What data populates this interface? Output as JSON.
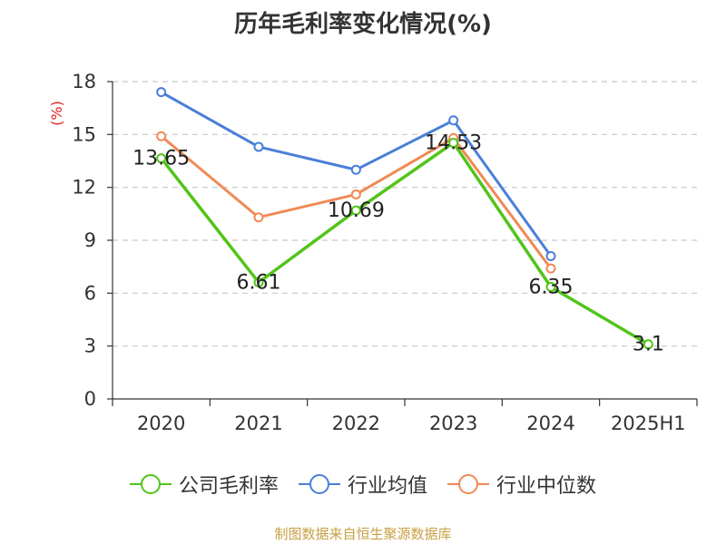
{
  "chart_data": {
    "type": "line",
    "title": "历年毛利率变化情况(%)",
    "ylabel": "(%)",
    "xlabel": "",
    "categories": [
      "2020",
      "2021",
      "2022",
      "2023",
      "2024",
      "2025H1"
    ],
    "ylim": [
      0,
      18
    ],
    "yticks": [
      0,
      3,
      6,
      9,
      12,
      15,
      18
    ],
    "grid": "horizontal dashed",
    "legend_position": "bottom",
    "series": [
      {
        "name": "公司毛利率",
        "color": "#52c41a",
        "values": [
          13.65,
          6.61,
          10.69,
          14.53,
          6.35,
          3.1
        ],
        "labels": [
          "13.65",
          "6.61",
          "10.69",
          "14.53",
          "6.35",
          "3.1"
        ]
      },
      {
        "name": "行业均值",
        "color": "#4a7fd9",
        "values": [
          17.4,
          14.3,
          13.0,
          15.8,
          8.1,
          null
        ]
      },
      {
        "name": "行业中位数",
        "color": "#f08a55",
        "values": [
          14.9,
          10.3,
          11.6,
          14.8,
          7.4,
          null
        ]
      }
    ]
  },
  "footer": {
    "source": "制图数据来自恒生聚源数据库"
  }
}
